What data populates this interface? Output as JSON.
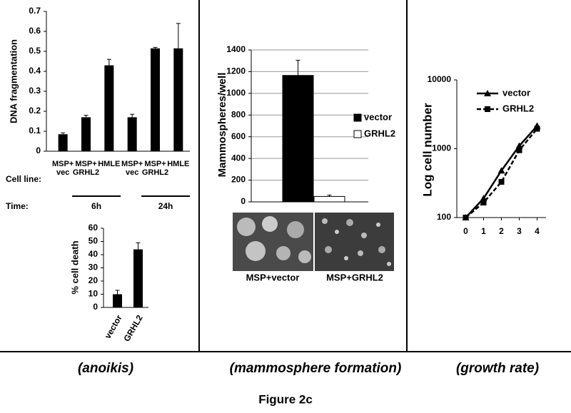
{
  "chart_data": [
    {
      "type": "bar",
      "y_label": "DNA fragmentation",
      "categories": [
        "MSP+ vec",
        "MSP+ GRHL2",
        "HMLE",
        "MSP+ vec",
        "MSP+ GRHL2",
        "HMLE"
      ],
      "values": [
        0.085,
        0.17,
        0.43,
        0.17,
        0.515,
        0.515
      ],
      "errors": [
        0.007,
        0.01,
        0.03,
        0.015,
        0.005,
        0.125
      ],
      "color": "#000000",
      "ylim": [
        0,
        0.7
      ],
      "yticks": [
        0,
        0.1,
        0.2,
        0.3,
        0.4,
        0.5,
        0.6,
        0.7
      ],
      "row_labels": [
        "Cell line:",
        "Time:"
      ],
      "groups": [
        "6h",
        "24h"
      ],
      "grid": false
    },
    {
      "type": "bar",
      "y_label": "% cell death",
      "categories": [
        "vector",
        "GRHL2"
      ],
      "values": [
        10,
        44
      ],
      "errors": [
        3,
        5
      ],
      "color": "#000000",
      "ylim": [
        0,
        60
      ],
      "yticks": [
        0,
        10,
        20,
        30,
        40,
        50,
        60
      ],
      "grid": false
    },
    {
      "type": "bar",
      "y_label": "Mammospheres/well",
      "categories": [
        null
      ],
      "series": [
        {
          "name": "vector",
          "color": "#000000",
          "values": [
            1165
          ],
          "errors": [
            140
          ]
        },
        {
          "name": "GRHL2",
          "color": "#ffffff",
          "values": [
            50
          ],
          "errors": [
            12
          ]
        }
      ],
      "ylim": [
        0,
        1400
      ],
      "yticks": [
        0,
        200,
        400,
        600,
        800,
        1000,
        1200,
        1400
      ],
      "grid": true,
      "legend": "right",
      "image_labels": [
        "MSP+vector",
        "MSP+GRHL2"
      ]
    },
    {
      "type": "line",
      "y_label": "Log cell number",
      "x": [
        0,
        1,
        2,
        3,
        4
      ],
      "series": [
        {
          "name": "vector",
          "color": "#000000",
          "values": [
            100,
            190,
            480,
            1100,
            2150
          ],
          "marker": "triangle",
          "line_style": "solid"
        },
        {
          "name": "GRHL2",
          "color": "#000000",
          "values": [
            100,
            165,
            330,
            950,
            1950
          ],
          "marker": "square",
          "line_style": "dashed"
        }
      ],
      "xlim": [
        -0.5,
        4.5
      ],
      "xticks": [
        0,
        1,
        2,
        3,
        4
      ],
      "ylim": [
        100,
        10000
      ],
      "yticks": [
        100,
        1000,
        10000
      ],
      "log_y": true,
      "legend": "top-left",
      "grid": false
    }
  ],
  "panel_captions": [
    "(anoikis)",
    "(mammosphere formation)",
    "(growth rate)"
  ],
  "figure_label": "Figure 2c"
}
